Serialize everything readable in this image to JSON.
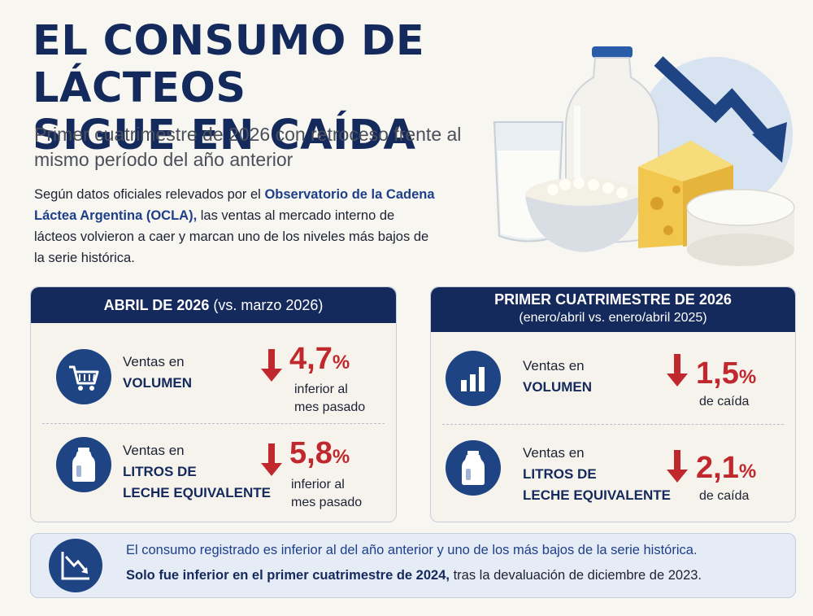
{
  "header": {
    "title_line1": "EL CONSUMO DE LÁCTEOS",
    "title_line2": "SIGUE EN CAÍDA",
    "subtitle": "Primer cuatrimestre de 2026 con retroceso frente al mismo período del año anterior",
    "intro_pre": "Según datos oficiales relevados por el ",
    "intro_highlight": "Observatorio de la Cadena Láctea Argentina (OCLA),",
    "intro_post": " las ventas al mercado interno de lácteos volvieron a caer y marcan uno de los niveles más bajos de la serie histórica."
  },
  "panel_april": {
    "heading_bold": "ABRIL DE 2026",
    "heading_normal": " (vs. marzo 2026)",
    "rows": [
      {
        "icon": "shopping-cart-icon",
        "label_line1": "Ventas en",
        "label_line2": "VOLUMEN",
        "label_line3": "",
        "value": "4,7",
        "unit": "%",
        "note_line1": "inferior al",
        "note_line2": "mes pasado"
      },
      {
        "icon": "milk-jug-icon",
        "label_line1": "Ventas en",
        "label_line2": "LITROS DE",
        "label_line3": "LECHE EQUIVALENTE",
        "value": "5,8",
        "unit": "%",
        "note_line1": "inferior al",
        "note_line2": "mes pasado"
      }
    ]
  },
  "panel_quarter": {
    "heading_bold": "PRIMER CUATRIMESTRE DE 2026",
    "heading_normal": "(enero/abril vs. enero/abril 2025)",
    "rows": [
      {
        "icon": "bar-chart-icon",
        "label_line1": "Ventas en",
        "label_line2": "VOLUMEN",
        "label_line3": "",
        "value": "1,5",
        "unit": "%",
        "note_line1": "de caída"
      },
      {
        "icon": "milk-jug-icon",
        "label_line1": "Ventas en",
        "label_line2": "LITROS DE",
        "label_line3": "LECHE EQUIVALENTE",
        "value": "2,1",
        "unit": "%",
        "note_line1": "de caída"
      }
    ]
  },
  "footer": {
    "icon": "trend-down-icon",
    "line1": "El consumo registrado es inferior al del año anterior y uno de los más bajos de la serie histórica.",
    "line2_bold": "Solo fue inferior en el primer cuatrimestre de 2024,",
    "line2_rest": " tras la devaluación de diciembre de 2023."
  },
  "colors": {
    "navy": "#14295c",
    "accent_blue": "#1d3f8a",
    "decline_red": "#c0282d",
    "background": "#f8f6f1"
  }
}
